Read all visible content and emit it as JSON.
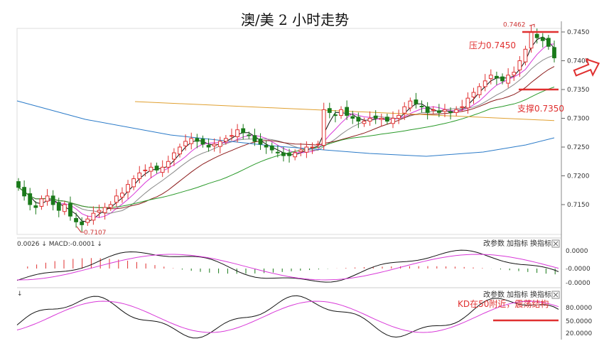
{
  "chart_data": [
    {
      "type": "candlestick",
      "title": "澳/美 2 小时走势",
      "ylim": [
        0.71,
        0.7475
      ],
      "yticks": [
        "0.7450",
        "0.7400",
        "0.7350",
        "0.7300",
        "0.7250",
        "0.7200",
        "0.7150"
      ],
      "low_marker": "0.7107",
      "high_marker": "0.7462",
      "annotations": {
        "resistance": "压力0.7450",
        "support": "支撑0.7350"
      },
      "levels": {
        "resistance": 0.745,
        "support": 0.735
      },
      "horizontal_line": {
        "from": 0.7329,
        "to": 0.7296
      },
      "closes": [
        0.718,
        0.7165,
        0.715,
        0.7145,
        0.716,
        0.7165,
        0.715,
        0.714,
        0.715,
        0.713,
        0.712,
        0.7115,
        0.7125,
        0.7135,
        0.714,
        0.7145,
        0.715,
        0.7165,
        0.717,
        0.7185,
        0.7195,
        0.7205,
        0.721,
        0.7215,
        0.721,
        0.7215,
        0.7225,
        0.724,
        0.725,
        0.726,
        0.7265,
        0.726,
        0.7255,
        0.725,
        0.7255,
        0.726,
        0.7265,
        0.727,
        0.728,
        0.7275,
        0.727,
        0.726,
        0.7255,
        0.725,
        0.7245,
        0.724,
        0.7235,
        0.7235,
        0.724,
        0.7245,
        0.725,
        0.725,
        0.7255,
        0.7315,
        0.731,
        0.7305,
        0.7315,
        0.7305,
        0.73,
        0.7295,
        0.7295,
        0.73,
        0.73,
        0.73,
        0.7295,
        0.73,
        0.7305,
        0.732,
        0.733,
        0.7325,
        0.732,
        0.731,
        0.7315,
        0.731,
        0.7315,
        0.731,
        0.7315,
        0.732,
        0.7335,
        0.7345,
        0.7355,
        0.7365,
        0.7375,
        0.737,
        0.7365,
        0.7375,
        0.738,
        0.74,
        0.742,
        0.745,
        0.744,
        0.7435,
        0.7425,
        0.7405
      ]
    },
    {
      "type": "line",
      "title": "MACD",
      "header": "0.0026 ↓  MACD:-0.0001 ↓",
      "menu": [
        "改参数",
        "加指标",
        "换指标"
      ],
      "yticks": [
        "0.0000",
        "-0.0000",
        "-0.0000"
      ]
    },
    {
      "type": "line",
      "title": "KD",
      "header": "↓",
      "menu": [
        "改参数",
        "加指标",
        "换指标"
      ],
      "yticks": [
        "80.0000",
        "50.0000",
        "20.0000"
      ],
      "annotation": "KD在50附近，震荡结构"
    }
  ],
  "colors": {
    "up": "#e03030",
    "down": "#1a7a1a",
    "ma_black": "#111111",
    "ma_pink": "#d838d8",
    "ma_grey": "#8a8a8a",
    "ma_maroon": "#8b1a1a",
    "ma_green": "#2a9a2a",
    "ma_blue": "#2a7ac8",
    "ma_orange": "#e0a030",
    "annotation": "#e03030"
  }
}
